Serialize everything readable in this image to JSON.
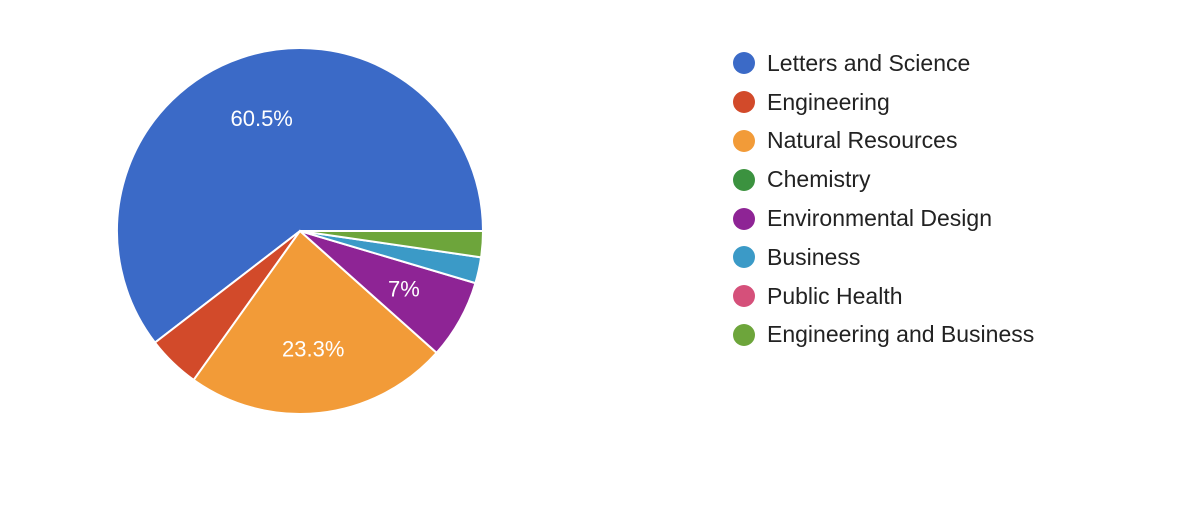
{
  "chart_data": {
    "type": "pie",
    "categories": [
      "Letters and Science",
      "Engineering",
      "Natural Resources",
      "Chemistry",
      "Environmental Design",
      "Business",
      "Public Health",
      "Engineering and Business"
    ],
    "values": [
      60.5,
      4.7,
      23.3,
      0,
      7.0,
      2.3,
      0,
      2.3
    ],
    "colors": [
      "#3b6ac7",
      "#d24a2a",
      "#f29b38",
      "#3b923f",
      "#8e2495",
      "#3b9ac7",
      "#d5507a",
      "#6da53b"
    ],
    "data_labels": [
      "60.5%",
      "",
      "23.3%",
      "",
      "7%",
      "",
      "",
      ""
    ],
    "legend_position": "right",
    "title": ""
  }
}
